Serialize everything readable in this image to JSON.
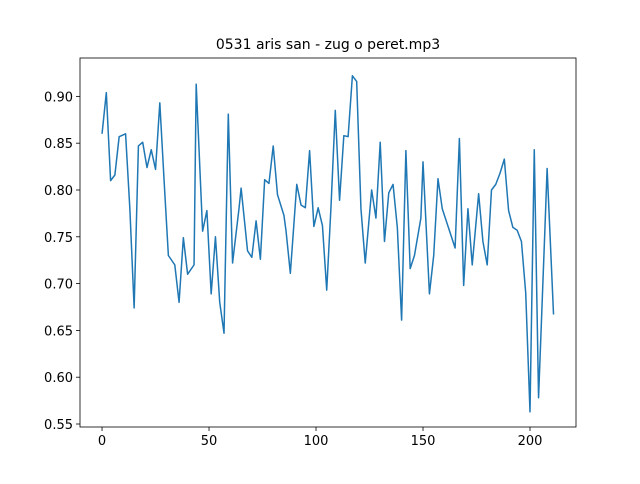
{
  "chart_data": {
    "type": "line",
    "title": "0531 aris san - zug o peret.mp3",
    "x": [
      0,
      2,
      4,
      6,
      8,
      11,
      13,
      15,
      17,
      19,
      21,
      23,
      25,
      27,
      29,
      31,
      34,
      36,
      38,
      40,
      43,
      44,
      47,
      49,
      51,
      53,
      55,
      57,
      59,
      61,
      64,
      65,
      68,
      70,
      72,
      74,
      76,
      78,
      80,
      82,
      85,
      86,
      88,
      91,
      93,
      95,
      97,
      99,
      101,
      103,
      105,
      107,
      109,
      111,
      113,
      115,
      117,
      119,
      121,
      123,
      126,
      128,
      130,
      132,
      134,
      136,
      138,
      140,
      142,
      144,
      146,
      149,
      150,
      153,
      155,
      157,
      159,
      161,
      163,
      165,
      167,
      169,
      171,
      173,
      176,
      178,
      180,
      182,
      184,
      186,
      188,
      190,
      192,
      194,
      196,
      198,
      200,
      202,
      204,
      207,
      208,
      211
    ],
    "series": [
      {
        "color": "#1f77b4",
        "values": [
          0.86,
          0.904,
          0.81,
          0.816,
          0.857,
          0.86,
          0.78,
          0.674,
          0.847,
          0.851,
          0.824,
          0.843,
          0.822,
          0.893,
          0.81,
          0.73,
          0.72,
          0.68,
          0.749,
          0.71,
          0.72,
          0.913,
          0.756,
          0.778,
          0.689,
          0.75,
          0.68,
          0.647,
          0.881,
          0.722,
          0.78,
          0.802,
          0.735,
          0.728,
          0.767,
          0.726,
          0.811,
          0.807,
          0.847,
          0.795,
          0.773,
          0.756,
          0.711,
          0.806,
          0.784,
          0.781,
          0.842,
          0.761,
          0.781,
          0.762,
          0.693,
          0.782,
          0.885,
          0.789,
          0.858,
          0.857,
          0.922,
          0.916,
          0.78,
          0.722,
          0.8,
          0.77,
          0.851,
          0.745,
          0.797,
          0.806,
          0.76,
          0.661,
          0.842,
          0.716,
          0.73,
          0.77,
          0.83,
          0.689,
          0.73,
          0.812,
          0.78,
          0.766,
          0.752,
          0.738,
          0.855,
          0.698,
          0.78,
          0.72,
          0.796,
          0.745,
          0.72,
          0.8,
          0.806,
          0.818,
          0.833,
          0.778,
          0.76,
          0.757,
          0.745,
          0.69,
          0.563,
          0.843,
          0.578,
          0.76,
          0.823,
          0.667
        ]
      }
    ],
    "xlim": [
      -10.3,
      221.5
    ],
    "ylim": [
      0.5468,
      0.941
    ],
    "xticks": [
      0,
      50,
      100,
      150,
      200
    ],
    "yticks": [
      {
        "value": 0.55,
        "label": "0.55"
      },
      {
        "value": 0.6,
        "label": "0.60"
      },
      {
        "value": 0.65,
        "label": "0.65"
      },
      {
        "value": 0.7,
        "label": "0.70"
      },
      {
        "value": 0.75,
        "label": "0.75"
      },
      {
        "value": 0.8,
        "label": "0.80"
      },
      {
        "value": 0.85,
        "label": "0.85"
      },
      {
        "value": 0.9,
        "label": "0.90"
      }
    ]
  }
}
